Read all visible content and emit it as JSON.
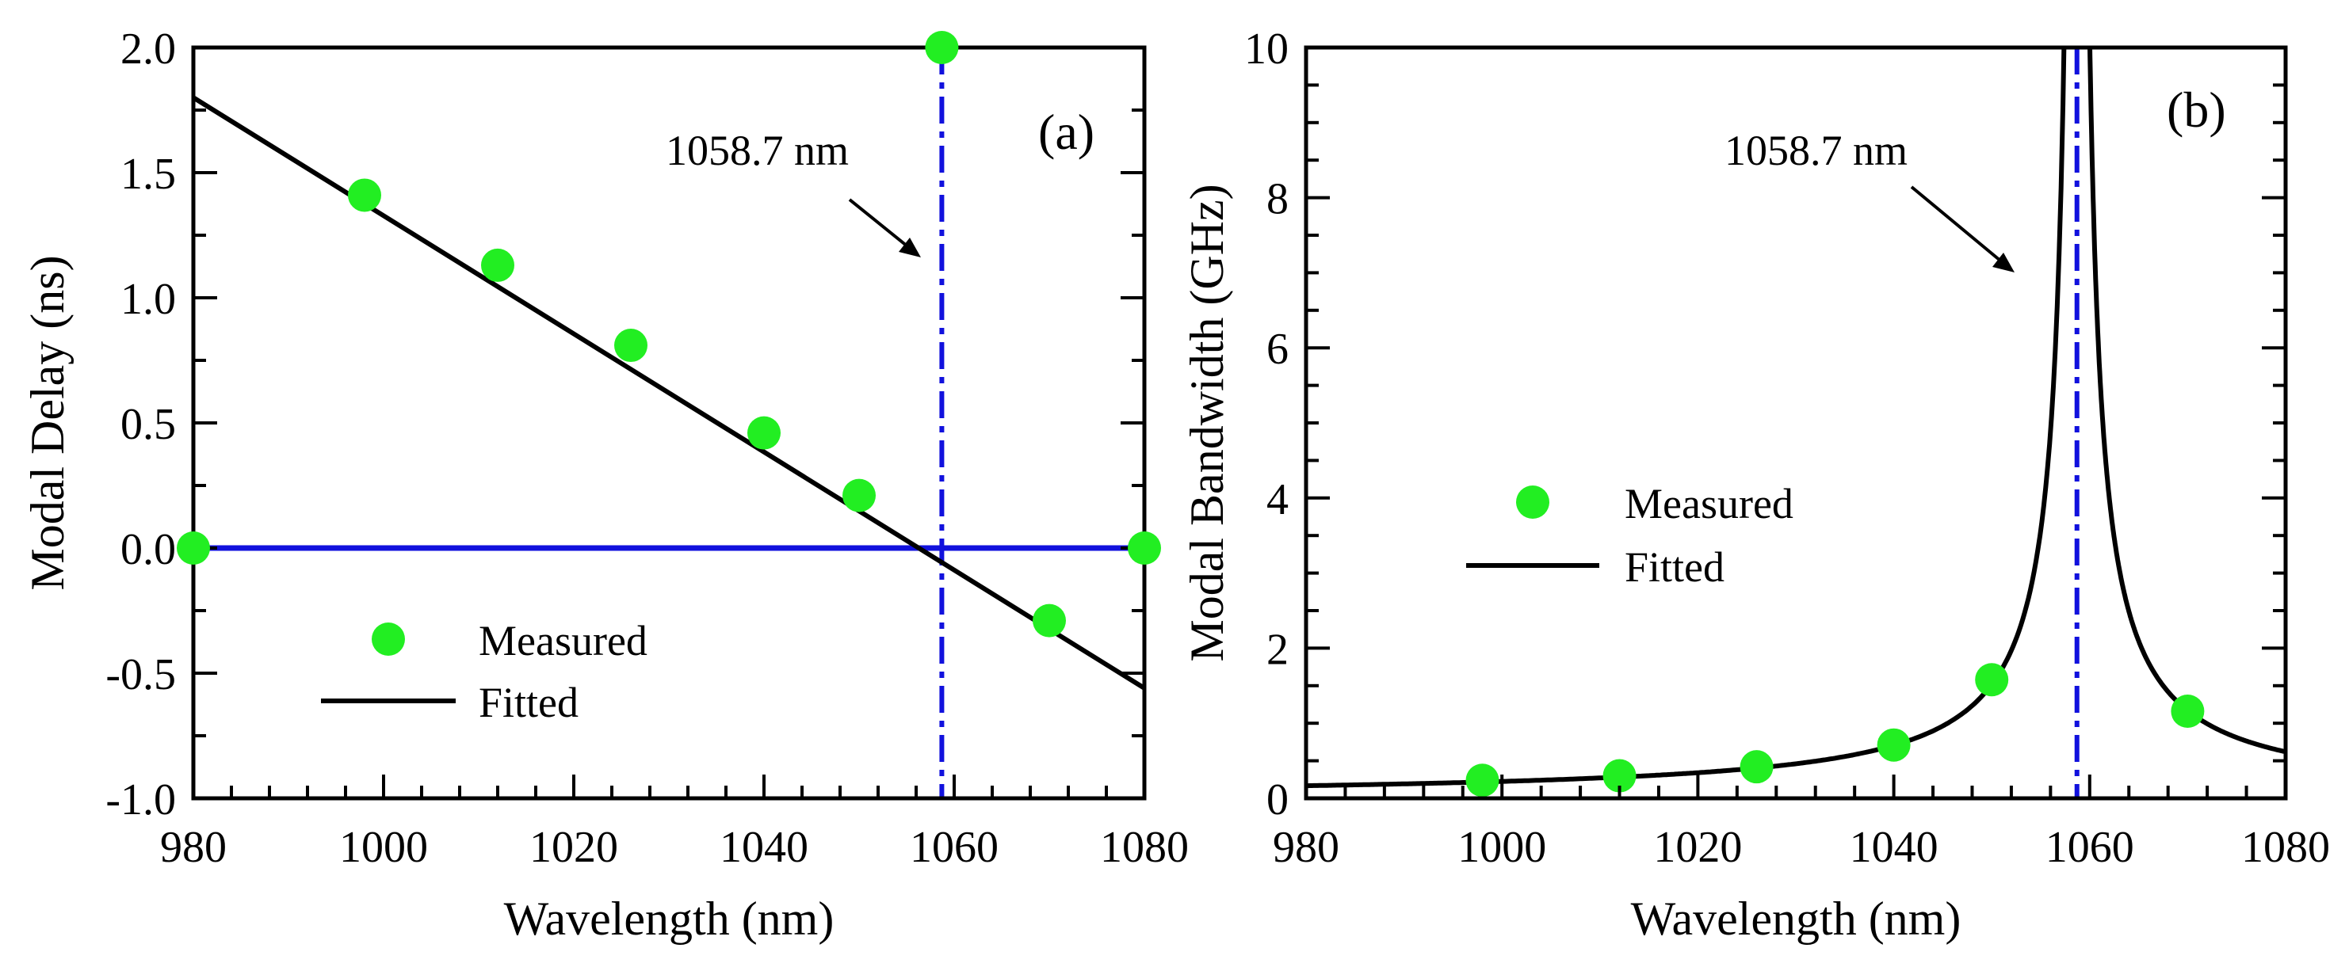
{
  "chart_data": [
    {
      "type": "scatter",
      "panel_label": "(a)",
      "xlabel": "Wavelength (nm)",
      "ylabel": "Modal Delay (ns)",
      "xlim": [
        980,
        1080
      ],
      "ylim": [
        -1.0,
        2.0
      ],
      "xticks": [
        980,
        1000,
        1020,
        1040,
        1060,
        1080
      ],
      "xtick_labels": [
        "980",
        "1000",
        "1020",
        "1040",
        "1060",
        "1080"
      ],
      "yticks": [
        -1.0,
        -0.5,
        0.0,
        0.5,
        1.0,
        1.5,
        2.0
      ],
      "ytick_labels": [
        "-1.0",
        "-0.5",
        "0.0",
        "0.5",
        "1.0",
        "1.5",
        "2.0"
      ],
      "series": [
        {
          "name": "Measured",
          "kind": "scatter",
          "color": "#22ee22",
          "x": [
            998,
            1012,
            1026,
            1040,
            1050,
            1070
          ],
          "y": [
            1.41,
            1.13,
            0.81,
            0.46,
            0.21,
            -0.29
          ]
        },
        {
          "name": "Fitted",
          "kind": "line",
          "color": "#000000",
          "x": [
            980,
            1080
          ],
          "y": [
            1.8,
            -0.56
          ]
        }
      ],
      "reference_lines": [
        {
          "orientation": "horizontal",
          "value": 0.0,
          "color": "#1111dd",
          "style": "solid"
        },
        {
          "orientation": "vertical",
          "value": 1058.7,
          "color": "#1111dd",
          "style": "dashed"
        }
      ],
      "marker_points": [
        {
          "x": 980,
          "y": 0.0
        },
        {
          "x": 1080,
          "y": 0.0
        },
        {
          "x": 1058.7,
          "y": 2.0
        }
      ],
      "annotation": {
        "text": "1058.7 nm"
      },
      "legend": {
        "position": "bottom-left",
        "entries": [
          "Measured",
          "Fitted"
        ]
      }
    },
    {
      "type": "scatter",
      "panel_label": "(b)",
      "xlabel": "Wavelength (nm)",
      "ylabel": "Modal Bandwidth (GHz)",
      "xlim": [
        980,
        1080
      ],
      "ylim": [
        0,
        10
      ],
      "xticks": [
        980,
        1000,
        1020,
        1040,
        1060,
        1080
      ],
      "xtick_labels": [
        "980",
        "1000",
        "1020",
        "1040",
        "1060",
        "1080"
      ],
      "yticks": [
        0,
        2,
        4,
        6,
        8,
        10
      ],
      "ytick_labels": [
        "0",
        "2",
        "4",
        "6",
        "8",
        "10"
      ],
      "series": [
        {
          "name": "Measured",
          "kind": "scatter",
          "color": "#22ee22",
          "x": [
            998,
            1012,
            1026,
            1040,
            1050,
            1070
          ],
          "y": [
            0.24,
            0.3,
            0.42,
            0.71,
            1.58,
            1.16
          ]
        },
        {
          "name": "Fitted",
          "kind": "line",
          "color": "#000000",
          "model": "bandwidth = k / |wavelength - 1058.7|",
          "k": 13.2,
          "pole": 1058.7
        }
      ],
      "reference_lines": [
        {
          "orientation": "vertical",
          "value": 1058.7,
          "color": "#1111dd",
          "style": "dashed"
        }
      ],
      "annotation": {
        "text": "1058.7 nm"
      },
      "legend": {
        "position": "center-left",
        "entries": [
          "Measured",
          "Fitted"
        ]
      }
    }
  ]
}
